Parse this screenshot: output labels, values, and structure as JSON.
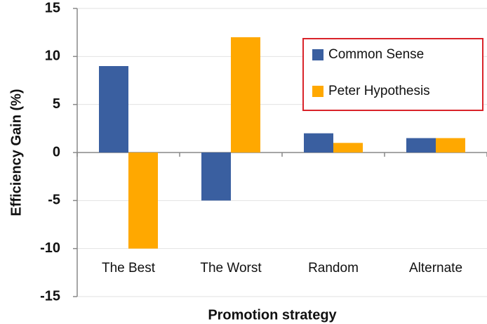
{
  "chart_data": {
    "type": "bar",
    "categories": [
      "The Best",
      "The Worst",
      "Random",
      "Alternate"
    ],
    "series": [
      {
        "name": "Common Sense",
        "color": "#3a5fa0",
        "values": [
          9,
          -5,
          2,
          1.5
        ]
      },
      {
        "name": "Peter Hypothesis",
        "color": "#ffa800",
        "values": [
          -10,
          12,
          1,
          1.5
        ]
      }
    ],
    "xlabel": "Promotion strategy",
    "ylabel": "Efficiency Gain (%)",
    "ylim": [
      -15,
      15
    ],
    "yticks": [
      -15,
      -10,
      -5,
      0,
      5,
      10,
      15
    ],
    "grid": true,
    "legend": "upper right"
  }
}
